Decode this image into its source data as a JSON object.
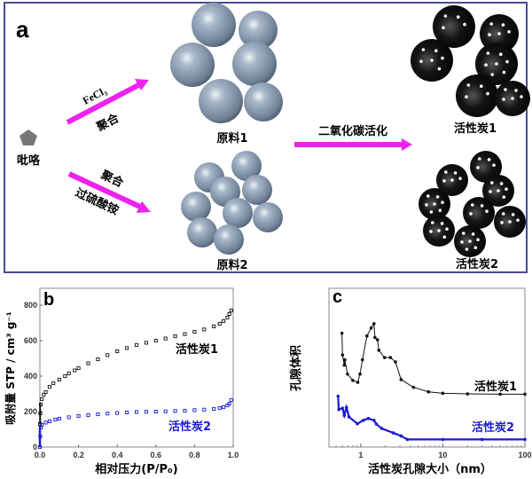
{
  "panel_a": {
    "label": "a",
    "pyrrole": "吡咯",
    "route1_top": "FeCl₃",
    "route1_bottom": "聚合",
    "route2_top": "聚合",
    "route2_bottom": "过硫酸铵",
    "raw1": "原料1",
    "raw2": "原料2",
    "activation": "二氧化碳活化",
    "ac1": "活性炭1",
    "ac2": "活性炭2",
    "colors": {
      "arrow": "#ee22ee",
      "frame": "#4a4a9a",
      "raw_sphere": "#8a9bb0",
      "carbon_sphere": "#111111",
      "pyrrole": "#777777"
    }
  },
  "chart_data": [
    {
      "panel": "b",
      "type": "scatter",
      "xlabel": "相对压力(P/P₀)",
      "ylabel": "吸附量 STP / cm³ g⁻¹",
      "xlim": [
        0,
        1.0
      ],
      "ylim": [
        0,
        880
      ],
      "xticks": [
        "0.0",
        "0.2",
        "0.4",
        "0.6",
        "0.8",
        "1.0"
      ],
      "yticks": [
        "0",
        "200",
        "400",
        "600",
        "800"
      ],
      "grid": false,
      "series": [
        {
          "name": "活性炭1",
          "color": "#111111",
          "x": [
            0.0,
            0.002,
            0.005,
            0.01,
            0.02,
            0.03,
            0.05,
            0.07,
            0.1,
            0.13,
            0.15,
            0.18,
            0.2,
            0.25,
            0.3,
            0.35,
            0.4,
            0.45,
            0.5,
            0.55,
            0.6,
            0.65,
            0.7,
            0.75,
            0.8,
            0.85,
            0.9,
            0.93,
            0.95,
            0.97,
            0.98,
            0.99
          ],
          "y": [
            130,
            190,
            240,
            270,
            295,
            310,
            340,
            360,
            380,
            400,
            415,
            432,
            445,
            472,
            495,
            518,
            540,
            558,
            575,
            588,
            600,
            612,
            625,
            637,
            650,
            663,
            680,
            695,
            710,
            730,
            750,
            770
          ]
        },
        {
          "name": "活性炭2",
          "color": "#1a1ad6",
          "x": [
            0.0,
            0.002,
            0.005,
            0.01,
            0.03,
            0.05,
            0.08,
            0.1,
            0.15,
            0.2,
            0.25,
            0.3,
            0.35,
            0.4,
            0.45,
            0.5,
            0.55,
            0.6,
            0.65,
            0.7,
            0.75,
            0.8,
            0.85,
            0.9,
            0.93,
            0.95,
            0.97,
            0.98,
            0.99
          ],
          "y": [
            0,
            60,
            110,
            125,
            138,
            145,
            155,
            160,
            168,
            175,
            180,
            185,
            189,
            192,
            195,
            198,
            199,
            200,
            201,
            203,
            205,
            208,
            211,
            215,
            220,
            225,
            235,
            245,
            265
          ]
        }
      ]
    },
    {
      "panel": "c",
      "type": "line",
      "xlabel": "活性炭孔隙大小（nm）",
      "ylabel": "孔隙体积",
      "xscale": "log",
      "xlim": [
        0.41,
        100
      ],
      "ylim": [
        0,
        100
      ],
      "yunits": "arbitrary (no y tick labels)",
      "xticks": [
        "1",
        "10",
        "100"
      ],
      "grid": false,
      "series": [
        {
          "name": "活性炭1",
          "color": "#111111",
          "x": [
            0.59,
            0.6,
            0.63,
            0.64,
            0.69,
            0.8,
            0.92,
            0.98,
            1.05,
            1.19,
            1.34,
            1.45,
            1.49,
            1.6,
            1.66,
            1.95,
            2.3,
            2.65,
            3.1,
            4.4,
            6.7,
            10,
            20,
            50,
            100
          ],
          "y": [
            71.7,
            58,
            51.6,
            55,
            46,
            42,
            40.8,
            46,
            55,
            70,
            75,
            77.7,
            69,
            67.6,
            61,
            56.4,
            56.4,
            53.6,
            42.5,
            37.6,
            34.8,
            33.9,
            33.5,
            33.3,
            33.3
          ]
        },
        {
          "name": "活性炭2",
          "color": "#1a1ad6",
          "x": [
            0.53,
            0.54,
            0.6,
            0.63,
            0.67,
            0.72,
            0.91,
            1.07,
            1.24,
            1.45,
            1.55,
            1.8,
            2.5,
            3.1,
            3.7,
            10,
            30,
            100
          ],
          "y": [
            32,
            23.6,
            24.5,
            20,
            25,
            19,
            14.7,
            16.8,
            18,
            16.8,
            14.5,
            11.7,
            8.9,
            7,
            4.8,
            4.8,
            4.8,
            4.8
          ]
        }
      ]
    }
  ]
}
